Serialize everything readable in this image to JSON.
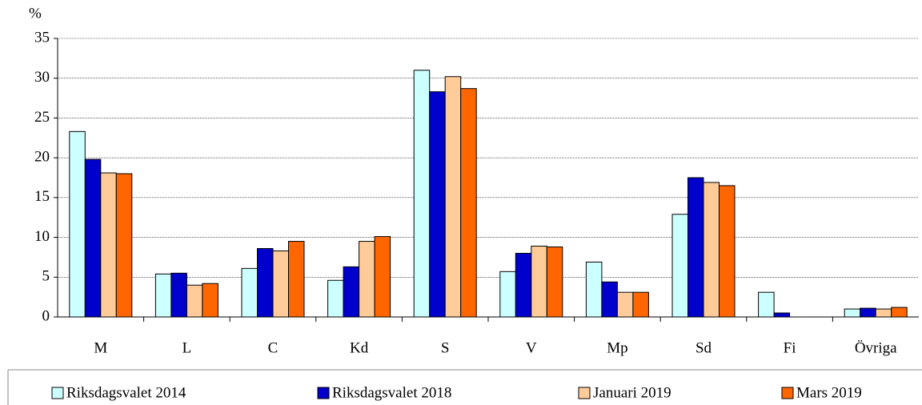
{
  "chart_data": {
    "type": "bar",
    "ylabel": "%",
    "categories": [
      "M",
      "L",
      "C",
      "Kd",
      "S",
      "V",
      "Mp",
      "Sd",
      "Fi",
      "Övriga"
    ],
    "series": [
      {
        "name": "Riksdagsvalet 2014",
        "color": "#ccffff",
        "values": [
          23.3,
          5.4,
          6.1,
          4.6,
          31.0,
          5.7,
          6.9,
          12.9,
          3.1,
          1.0
        ]
      },
      {
        "name": "Riksdagsvalet 2018",
        "color": "#0000cc",
        "values": [
          19.8,
          5.5,
          8.6,
          6.3,
          28.3,
          8.0,
          4.4,
          17.5,
          0.5,
          1.1
        ]
      },
      {
        "name": "Januari 2019",
        "color": "#ffcc99",
        "values": [
          18.1,
          4.0,
          8.3,
          9.5,
          30.2,
          8.9,
          3.1,
          16.9,
          null,
          1.0
        ]
      },
      {
        "name": "Mars 2019",
        "color": "#ff6600",
        "values": [
          18.0,
          4.2,
          9.5,
          10.1,
          28.7,
          8.8,
          3.1,
          16.5,
          null,
          1.2
        ]
      }
    ],
    "ylim": [
      0,
      35
    ],
    "yticks": [
      0,
      5,
      10,
      15,
      20,
      25,
      30,
      35
    ],
    "grid": true,
    "legend": "bottom"
  }
}
